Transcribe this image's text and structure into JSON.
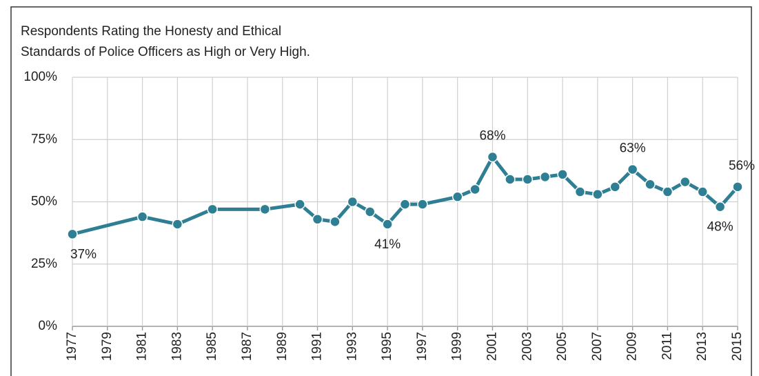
{
  "chart_data": {
    "type": "line",
    "title": [
      "Respondents Rating the Honesty and Ethical",
      "Standards of Police Officers as High or Very High."
    ],
    "series": [
      {
        "name": "Police officers rated high or very high",
        "color": "#2e7f93",
        "x": [
          1977,
          1981,
          1983,
          1985,
          1988,
          1990,
          1991,
          1992,
          1993,
          1994,
          1995,
          1996,
          1997,
          1999,
          2000,
          2001,
          2002,
          2003,
          2004,
          2005,
          2006,
          2007,
          2008,
          2009,
          2010,
          2011,
          2012,
          2013,
          2014,
          2015
        ],
        "values": [
          37,
          44,
          41,
          47,
          47,
          49,
          43,
          42,
          50,
          46,
          41,
          49,
          49,
          52,
          55,
          68,
          59,
          59,
          60,
          61,
          54,
          53,
          56,
          63,
          57,
          54,
          58,
          54,
          48,
          56
        ],
        "value_labels": [
          "37%",
          null,
          null,
          null,
          null,
          null,
          null,
          null,
          null,
          null,
          "41%",
          null,
          null,
          null,
          null,
          "68%",
          null,
          null,
          null,
          null,
          null,
          null,
          null,
          "63%",
          null,
          null,
          null,
          null,
          "48%",
          "56%"
        ]
      }
    ],
    "xlim": [
      1977,
      2015
    ],
    "xticks": [
      1977,
      1979,
      1981,
      1983,
      1985,
      1987,
      1989,
      1991,
      1993,
      1995,
      1997,
      1999,
      2001,
      2003,
      2005,
      2007,
      2009,
      2011,
      2013,
      2015
    ],
    "ylim": [
      0,
      100
    ],
    "yticks": [
      {
        "value": 0,
        "label": "0%"
      },
      {
        "value": 25,
        "label": "25%"
      },
      {
        "value": 50,
        "label": "50%"
      },
      {
        "value": 75,
        "label": "75%"
      },
      {
        "value": 100,
        "label": "100%"
      }
    ],
    "grid": true
  }
}
